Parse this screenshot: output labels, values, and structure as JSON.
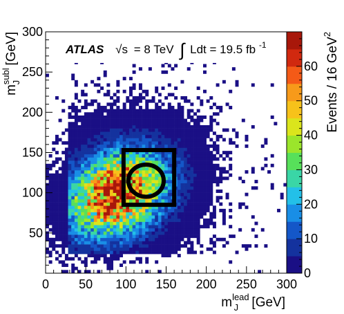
{
  "chart_data": {
    "type": "heatmap",
    "experiment_label": "ATLAS",
    "energy_prefix": "√s",
    "energy_value": "= 8 TeV",
    "integral_symbol": "∫",
    "luminosity_text": "Ldt = 19.5 fb",
    "luminosity_exponent": "-1",
    "xlabel_main": "m",
    "xlabel_sub": "J",
    "xlabel_sup": "lead",
    "xlabel_unit": " [GeV]",
    "ylabel_main": "m",
    "ylabel_sub": "J",
    "ylabel_sup": "subl",
    "ylabel_unit": " [GeV]",
    "zlabel_main": "Events / 16 GeV",
    "zlabel_sup": "2",
    "xlim": [
      0,
      300
    ],
    "ylim": [
      0,
      300
    ],
    "zlim": [
      0,
      70
    ],
    "x_ticks": [
      0,
      50,
      100,
      150,
      200,
      250,
      300
    ],
    "y_ticks": [
      50,
      100,
      150,
      200,
      250,
      300
    ],
    "z_ticks": [
      0,
      10,
      20,
      30,
      40,
      50,
      60
    ],
    "bin_width": 4,
    "palette": [
      "#1a0f85",
      "#14329e",
      "#1457c8",
      "#198ee6",
      "#23c0e8",
      "#3ad6a6",
      "#57e05a",
      "#9be52b",
      "#dbe51c",
      "#f7c21a",
      "#f79a1a",
      "#f45a17",
      "#d1290f",
      "#a8170a"
    ],
    "distribution": {
      "peak_events": 63,
      "center_x": 90,
      "center_y": 100,
      "sigma_x": 40,
      "sigma_y": 34,
      "correlation": 0.25,
      "tail_slope_x": 30,
      "tail_slope_y": 40
    },
    "signal_region_box": {
      "x_min": 97,
      "x_max": 160,
      "y_min": 85,
      "y_max": 153
    },
    "signal_region_ellipse": {
      "center_x": 125,
      "center_y": 115,
      "radius_x": 22,
      "radius_y": 20
    }
  }
}
